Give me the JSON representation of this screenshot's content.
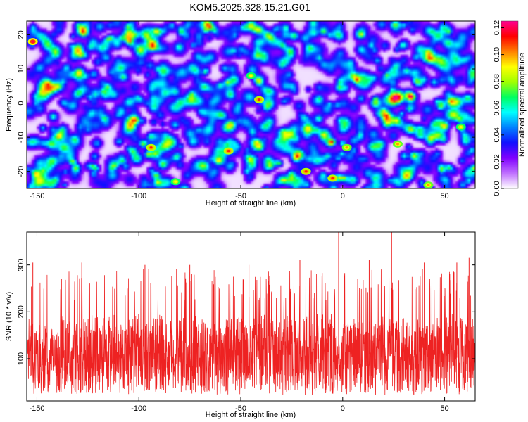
{
  "chart_data": [
    {
      "type": "heatmap",
      "title": "KOM5.2025.328.15.21.G01",
      "xlabel": "Height of straight line (km)",
      "ylabel": "Frequency (Hz)",
      "xlim": [
        -155,
        65
      ],
      "ylim": [
        -25,
        24
      ],
      "x_ticks": [
        -150,
        -100,
        -50,
        0,
        50
      ],
      "y_ticks": [
        -20,
        -10,
        0,
        10,
        20
      ],
      "colorbar": {
        "label": "Normalized spectral amplitude",
        "range": [
          0.0,
          0.125
        ],
        "ticks": [
          "0.00",
          "0.02",
          "0.04",
          "0.06",
          "0.08",
          "0.10",
          "0.12"
        ],
        "colormap": [
          "#ffffff",
          "#c070ff",
          "#8000ff",
          "#1010ff",
          "#0080ff",
          "#00ffff",
          "#00ff60",
          "#a0ff00",
          "#ffff00",
          "#ff8000",
          "#ff0000",
          "#ff0090"
        ]
      },
      "description": "Noise-like spectral map; scattered local maxima near 0.08-0.12",
      "peaks": [
        {
          "x": -152,
          "y": 18,
          "v": 0.12
        },
        {
          "x": -94,
          "y": -13,
          "v": 0.11
        },
        {
          "x": -56,
          "y": -14,
          "v": 0.11
        },
        {
          "x": -41,
          "y": 1,
          "v": 0.11
        },
        {
          "x": -18,
          "y": -20,
          "v": 0.11
        },
        {
          "x": -5,
          "y": -22,
          "v": 0.11
        },
        {
          "x": 2,
          "y": -13,
          "v": 0.1
        },
        {
          "x": 42,
          "y": -24,
          "v": 0.1
        },
        {
          "x": 27,
          "y": -12,
          "v": 0.1
        },
        {
          "x": -45,
          "y": 8,
          "v": 0.09
        },
        {
          "x": -82,
          "y": -23,
          "v": 0.09
        },
        {
          "x": 58,
          "y": -7,
          "v": 0.09
        }
      ]
    },
    {
      "type": "line",
      "title": "",
      "xlabel": "Height of straight line (km)",
      "ylabel": "SNR (10 * v/v)",
      "xlim": [
        -155,
        65
      ],
      "ylim": [
        10,
        370
      ],
      "x_ticks": [
        -150,
        -100,
        -50,
        0,
        50
      ],
      "y_ticks": [
        100,
        200,
        300
      ],
      "series": [
        {
          "name": "SNR",
          "color": "#ee2222",
          "description": "Dense noisy trace, mostly between 40 and 240, with spikes to ~370",
          "baseline": 110,
          "spread": 70,
          "spikes": [
            {
              "x": -2,
              "y": 370
            },
            {
              "x": 24,
              "y": 370
            },
            {
              "x": 62,
              "y": 315
            },
            {
              "x": 40,
              "y": 305
            },
            {
              "x": 56,
              "y": 305
            },
            {
              "x": -152,
              "y": 305
            },
            {
              "x": -128,
              "y": 305
            },
            {
              "x": -21,
              "y": 310
            },
            {
              "x": 13,
              "y": 310
            },
            {
              "x": -97,
              "y": 300
            },
            {
              "x": -75,
              "y": 300
            },
            {
              "x": -46,
              "y": 300
            }
          ]
        }
      ]
    }
  ]
}
